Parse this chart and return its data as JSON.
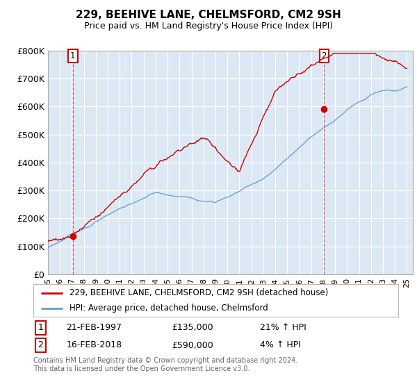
{
  "title1": "229, BEEHIVE LANE, CHELMSFORD, CM2 9SH",
  "title2": "Price paid vs. HM Land Registry's House Price Index (HPI)",
  "ylim": [
    0,
    800000
  ],
  "yticks": [
    0,
    100000,
    200000,
    300000,
    400000,
    500000,
    600000,
    700000,
    800000
  ],
  "ytick_labels": [
    "£0",
    "£100K",
    "£200K",
    "£300K",
    "£400K",
    "£500K",
    "£600K",
    "£700K",
    "£800K"
  ],
  "plot_bg": "#dce9f5",
  "legend_label_red": "229, BEEHIVE LANE, CHELMSFORD, CM2 9SH (detached house)",
  "legend_label_blue": "HPI: Average price, detached house, Chelmsford",
  "sale1_date": "21-FEB-1997",
  "sale1_price": 135000,
  "sale1_hpi": "21% ↑ HPI",
  "sale2_date": "16-FEB-2018",
  "sale2_price": 590000,
  "sale2_hpi": "4% ↑ HPI",
  "footer": "Contains HM Land Registry data © Crown copyright and database right 2024.\nThis data is licensed under the Open Government Licence v3.0.",
  "red_color": "#cc0000",
  "blue_color": "#6699cc",
  "marker_color": "#cc0000"
}
